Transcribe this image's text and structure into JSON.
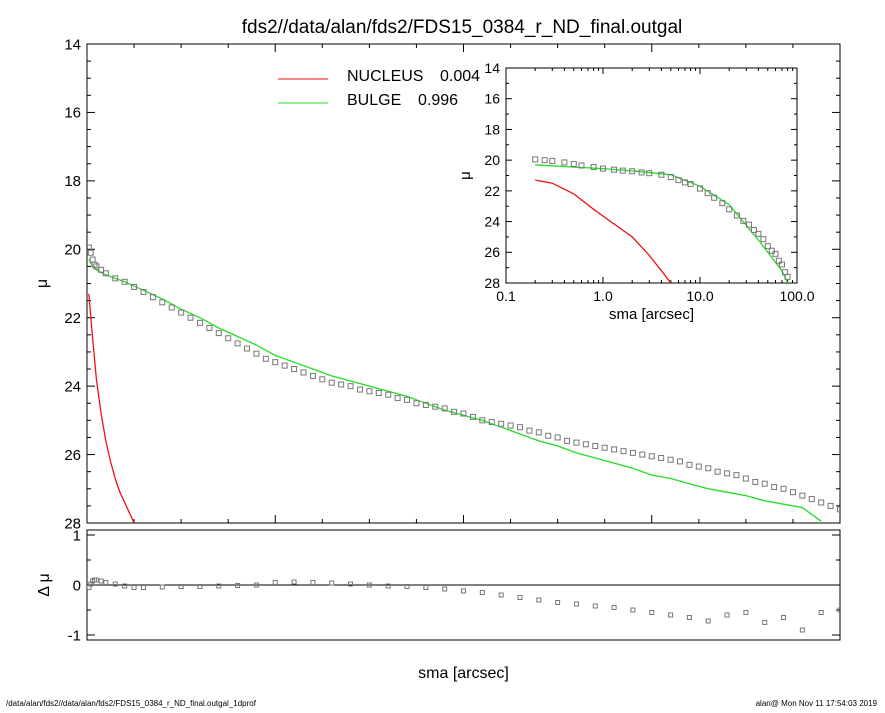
{
  "title": "fds2//data/alan/fds2/FDS15_0384_r_ND_final.outgal",
  "footer": {
    "left": "/data/alan/fds2//data/alan/fds2/FDS15_0384_r_ND_final.outgal_1dprof",
    "right": "alan@  Mon Nov 11 17:54:03 2019"
  },
  "legend": [
    {
      "name": "NUCLEUS",
      "value": "0.004",
      "color": "#ee1111"
    },
    {
      "name": "BULGE",
      "value": "0.996",
      "color": "#22dd22"
    }
  ],
  "colors": {
    "nucleus": "#ee1111",
    "bulge": "#22dd22",
    "data": "#777777"
  },
  "chart_data": [
    {
      "type": "scatter",
      "panel": "main",
      "xlabel": "sma [arcsec]",
      "ylabel": "μ",
      "xlim": [
        0,
        80
      ],
      "ylim": [
        28,
        14
      ],
      "y_inverted": true,
      "xticks": [
        "0",
        "20",
        "40",
        "60",
        "80"
      ],
      "yticks": [
        "14",
        "16",
        "18",
        "20",
        "22",
        "24",
        "26",
        "28"
      ],
      "series": [
        {
          "name": "NUCLEUS",
          "kind": "line",
          "color": "#ee1111",
          "x": [
            0.2,
            0.5,
            1,
            1.5,
            2,
            2.5,
            3,
            3.5,
            4,
            4.5,
            5
          ],
          "y": [
            21.3,
            22.3,
            23.8,
            24.8,
            25.6,
            26.2,
            26.7,
            27.1,
            27.4,
            27.7,
            28.0
          ]
        },
        {
          "name": "BULGE",
          "kind": "line",
          "color": "#22dd22",
          "x": [
            0.2,
            0.5,
            1,
            2,
            4,
            6,
            8,
            10,
            12,
            14,
            16,
            18,
            20,
            22,
            24,
            26,
            28,
            30,
            32,
            34,
            36,
            38,
            40,
            42,
            44,
            46,
            48,
            50,
            52,
            54,
            56,
            58,
            60,
            62,
            64,
            66,
            68,
            70,
            72,
            74,
            76,
            78
          ],
          "y": [
            20.3,
            20.45,
            20.6,
            20.75,
            20.95,
            21.2,
            21.45,
            21.75,
            22.0,
            22.3,
            22.55,
            22.8,
            23.1,
            23.3,
            23.5,
            23.7,
            23.85,
            24.0,
            24.15,
            24.3,
            24.5,
            24.7,
            24.85,
            25.0,
            25.2,
            25.4,
            25.6,
            25.75,
            25.95,
            26.1,
            26.25,
            26.4,
            26.6,
            26.7,
            26.85,
            27.0,
            27.1,
            27.2,
            27.35,
            27.45,
            27.55,
            27.95
          ]
        },
        {
          "name": "",
          "kind": "points",
          "color": "#777777",
          "x": [
            0.2,
            0.4,
            0.6,
            0.8,
            1,
            1.5,
            2,
            3,
            4,
            5,
            6,
            7,
            8,
            9,
            10,
            11,
            12,
            13,
            14,
            15,
            16,
            17,
            18,
            19,
            20,
            21,
            22,
            23,
            24,
            25,
            26,
            27,
            28,
            29,
            30,
            31,
            32,
            33,
            34,
            35,
            36,
            37,
            38,
            39,
            40,
            41,
            42,
            43,
            44,
            45,
            46,
            47,
            48,
            49,
            50,
            51,
            52,
            53,
            54,
            55,
            56,
            57,
            58,
            59,
            60,
            61,
            62,
            63,
            64,
            65,
            66,
            67,
            68,
            69,
            70,
            71,
            72,
            73,
            74,
            75,
            76,
            77,
            78,
            79,
            80
          ],
          "y": [
            19.95,
            20.1,
            20.3,
            20.45,
            20.5,
            20.6,
            20.7,
            20.85,
            20.95,
            21.1,
            21.25,
            21.4,
            21.55,
            21.7,
            21.85,
            22.0,
            22.15,
            22.3,
            22.45,
            22.6,
            22.75,
            22.9,
            23.05,
            23.2,
            23.3,
            23.4,
            23.5,
            23.6,
            23.7,
            23.8,
            23.9,
            23.95,
            24.0,
            24.1,
            24.15,
            24.2,
            24.25,
            24.35,
            24.4,
            24.5,
            24.55,
            24.6,
            24.65,
            24.75,
            24.8,
            24.9,
            25.0,
            25.05,
            25.1,
            25.15,
            25.2,
            25.3,
            25.35,
            25.45,
            25.5,
            25.6,
            25.65,
            25.7,
            25.75,
            25.8,
            25.85,
            25.9,
            25.95,
            26.0,
            26.05,
            26.1,
            26.15,
            26.2,
            26.3,
            26.35,
            26.4,
            26.5,
            26.55,
            26.6,
            26.7,
            26.8,
            26.85,
            26.95,
            27.0,
            27.1,
            27.2,
            27.3,
            27.4,
            27.5,
            27.6
          ]
        }
      ]
    },
    {
      "type": "scatter",
      "panel": "residual",
      "xlabel": "sma [arcsec]",
      "ylabel": "Δ μ",
      "xlim": [
        0,
        80
      ],
      "ylim": [
        -1.1,
        1.1
      ],
      "yticks": [
        "-1",
        "0",
        "1"
      ],
      "series": [
        {
          "name": "",
          "kind": "points",
          "color": "#777777",
          "x": [
            0.2,
            0.4,
            0.6,
            0.8,
            1,
            1.5,
            2,
            3,
            4,
            5,
            6,
            8,
            10,
            12,
            14,
            16,
            18,
            20,
            22,
            24,
            26,
            28,
            30,
            32,
            34,
            36,
            38,
            40,
            42,
            44,
            46,
            48,
            50,
            52,
            54,
            56,
            58,
            60,
            62,
            64,
            66,
            68,
            70,
            72,
            74,
            76,
            78,
            80
          ],
          "y": [
            -0.05,
            0.02,
            0.08,
            0.1,
            0.1,
            0.08,
            0.05,
            0.02,
            -0.02,
            -0.05,
            -0.05,
            -0.04,
            -0.03,
            -0.03,
            -0.02,
            -0.01,
            0.0,
            0.05,
            0.06,
            0.05,
            0.04,
            0.02,
            0.0,
            -0.02,
            -0.03,
            -0.05,
            -0.08,
            -0.12,
            -0.15,
            -0.2,
            -0.25,
            -0.3,
            -0.35,
            -0.38,
            -0.42,
            -0.45,
            -0.5,
            -0.55,
            -0.6,
            -0.65,
            -0.72,
            -0.6,
            -0.55,
            -0.75,
            -0.65,
            -0.9,
            -0.55,
            -0.5
          ]
        }
      ]
    },
    {
      "type": "scatter",
      "panel": "inset",
      "xlabel": "sma [arcsec]",
      "ylabel": "μ",
      "xscale": "log",
      "xlim": [
        0.1,
        100
      ],
      "ylim": [
        28,
        14
      ],
      "y_inverted": true,
      "xticks": [
        "0.1",
        "1.0",
        "10.0",
        "100.0"
      ],
      "yticks": [
        "14",
        "16",
        "18",
        "20",
        "22",
        "24",
        "26",
        "28"
      ],
      "series": [
        {
          "name": "NUCLEUS",
          "kind": "line",
          "color": "#ee1111",
          "x": [
            0.2,
            0.3,
            0.5,
            0.8,
            1.2,
            2,
            3,
            4,
            5
          ],
          "y": [
            21.3,
            21.5,
            22.2,
            23.2,
            24.0,
            25.0,
            26.2,
            27.2,
            28.0
          ]
        },
        {
          "name": "BULGE",
          "kind": "line",
          "color": "#22dd22",
          "x": [
            0.2,
            0.5,
            1,
            2,
            5,
            10,
            20,
            40,
            70,
            80
          ],
          "y": [
            20.3,
            20.45,
            20.55,
            20.7,
            20.95,
            21.7,
            22.9,
            25.2,
            27.2,
            28.0
          ]
        },
        {
          "name": "",
          "kind": "points",
          "color": "#777777",
          "x": [
            0.2,
            0.25,
            0.3,
            0.4,
            0.5,
            0.6,
            0.8,
            1,
            1.3,
            1.6,
            2,
            2.5,
            3,
            4,
            5,
            6,
            7,
            8,
            10,
            12,
            14,
            17,
            20,
            24,
            28,
            32,
            36,
            40,
            45,
            50,
            55,
            60,
            65,
            70,
            75,
            80
          ],
          "y": [
            19.95,
            20.0,
            20.05,
            20.15,
            20.25,
            20.35,
            20.45,
            20.55,
            20.62,
            20.68,
            20.72,
            20.8,
            20.85,
            20.95,
            21.1,
            21.3,
            21.45,
            21.55,
            21.85,
            22.15,
            22.45,
            22.8,
            23.2,
            23.6,
            23.95,
            24.2,
            24.55,
            24.8,
            25.15,
            25.6,
            25.9,
            26.1,
            26.55,
            26.8,
            27.3,
            27.6
          ]
        }
      ]
    }
  ]
}
